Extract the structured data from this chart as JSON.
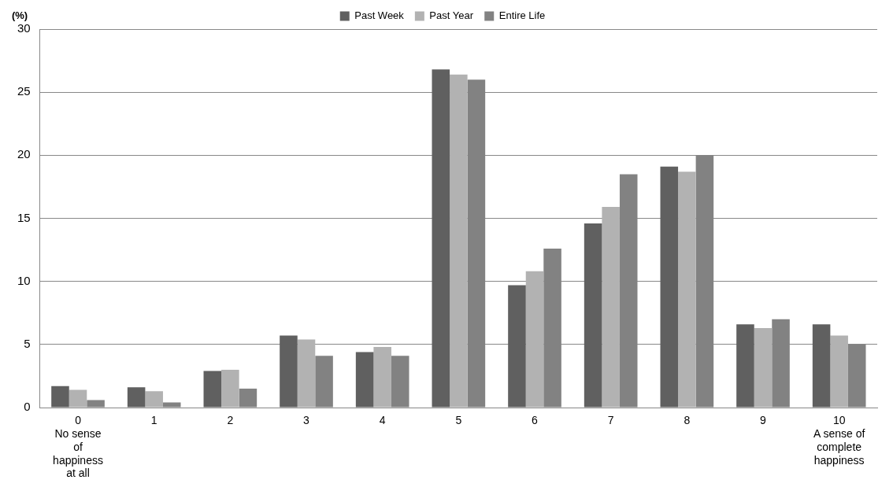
{
  "chart_data": {
    "type": "bar",
    "ylabel": "(%)",
    "categories": [
      "0\nNo sense\nof\nhappiness\nat all",
      "1",
      "2",
      "3",
      "4",
      "5",
      "6",
      "7",
      "8",
      "9",
      "10\nA sense of\ncomplete\nhappiness"
    ],
    "series": [
      {
        "name": "Past Week",
        "color": "#606060",
        "values": [
          1.7,
          1.6,
          2.9,
          5.7,
          4.4,
          26.8,
          9.7,
          14.6,
          19.1,
          6.6,
          6.6
        ]
      },
      {
        "name": "Past Year",
        "color": "#b2b2b2",
        "values": [
          1.4,
          1.3,
          3.0,
          5.4,
          4.8,
          26.4,
          10.8,
          15.9,
          18.7,
          6.3,
          5.7
        ]
      },
      {
        "name": "Entire Life",
        "color": "#828282",
        "values": [
          0.6,
          0.4,
          1.5,
          4.1,
          4.1,
          26.0,
          12.6,
          18.5,
          20.0,
          7.0,
          5.0
        ]
      }
    ],
    "ylim": [
      0,
      30
    ],
    "yticks": [
      0,
      5,
      10,
      15,
      20,
      25,
      30
    ],
    "grid": "y",
    "legend": "top"
  }
}
